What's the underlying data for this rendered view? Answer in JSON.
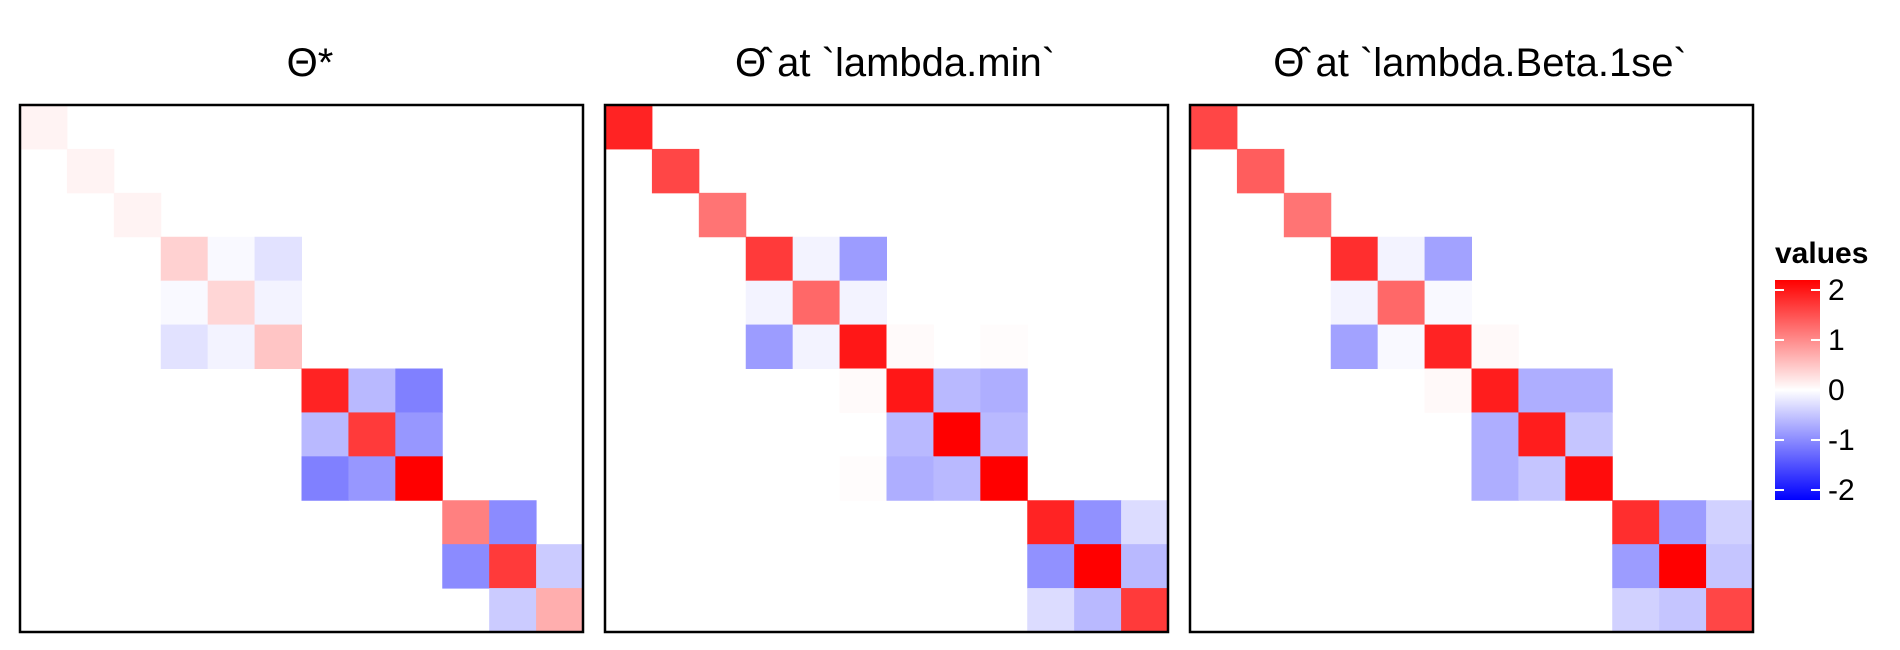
{
  "chart_data": {
    "type": "heatmap",
    "n": 12,
    "color_scale": {
      "low": "#0000ff",
      "mid": "#ffffff",
      "high": "#ff0000",
      "range": [
        -2.2,
        2.2
      ]
    },
    "legend": {
      "title": "values",
      "ticks": [
        2,
        1,
        0,
        -1,
        -2
      ],
      "tick_labels": [
        "2",
        "1",
        "0",
        "-1",
        "-2"
      ],
      "placement": "right"
    },
    "panels": [
      {
        "title": "Θ*",
        "cells": [
          [
            0,
            0,
            0.1
          ],
          [
            1,
            1,
            0.1
          ],
          [
            2,
            2,
            0.1
          ],
          [
            3,
            3,
            0.4
          ],
          [
            3,
            4,
            -0.05
          ],
          [
            3,
            5,
            -0.25
          ],
          [
            4,
            3,
            -0.05
          ],
          [
            4,
            4,
            0.35
          ],
          [
            4,
            5,
            -0.1
          ],
          [
            5,
            3,
            -0.25
          ],
          [
            5,
            4,
            -0.1
          ],
          [
            5,
            5,
            0.5
          ],
          [
            6,
            6,
            1.9
          ],
          [
            6,
            7,
            -0.6
          ],
          [
            6,
            8,
            -1.1
          ],
          [
            7,
            6,
            -0.6
          ],
          [
            7,
            7,
            1.7
          ],
          [
            7,
            8,
            -0.9
          ],
          [
            8,
            6,
            -1.1
          ],
          [
            8,
            7,
            -0.9
          ],
          [
            8,
            8,
            2.2
          ],
          [
            9,
            9,
            1.1
          ],
          [
            9,
            10,
            -1.0
          ],
          [
            10,
            9,
            -1.0
          ],
          [
            10,
            10,
            1.7
          ],
          [
            10,
            11,
            -0.45
          ],
          [
            11,
            10,
            -0.45
          ],
          [
            11,
            11,
            0.7
          ]
        ]
      },
      {
        "title": "Θ̂ at `lambda.min`",
        "cells": [
          [
            0,
            0,
            1.9
          ],
          [
            1,
            1,
            1.6
          ],
          [
            2,
            2,
            1.2
          ],
          [
            3,
            3,
            1.7
          ],
          [
            3,
            4,
            -0.1
          ],
          [
            3,
            5,
            -0.85
          ],
          [
            4,
            3,
            -0.1
          ],
          [
            4,
            4,
            1.3
          ],
          [
            4,
            5,
            -0.1
          ],
          [
            5,
            3,
            -0.85
          ],
          [
            5,
            4,
            -0.1
          ],
          [
            5,
            5,
            2.0
          ],
          [
            5,
            6,
            0.04
          ],
          [
            5,
            8,
            0.03
          ],
          [
            6,
            5,
            0.04
          ],
          [
            6,
            6,
            2.0
          ],
          [
            6,
            7,
            -0.6
          ],
          [
            6,
            8,
            -0.7
          ],
          [
            7,
            6,
            -0.6
          ],
          [
            7,
            7,
            2.2
          ],
          [
            7,
            8,
            -0.6
          ],
          [
            8,
            5,
            0.03
          ],
          [
            8,
            6,
            -0.7
          ],
          [
            8,
            7,
            -0.6
          ],
          [
            8,
            8,
            2.2
          ],
          [
            9,
            9,
            1.9
          ],
          [
            9,
            10,
            -0.95
          ],
          [
            9,
            11,
            -0.3
          ],
          [
            10,
            9,
            -0.95
          ],
          [
            10,
            10,
            2.2
          ],
          [
            10,
            11,
            -0.6
          ],
          [
            11,
            9,
            -0.3
          ],
          [
            11,
            10,
            -0.6
          ],
          [
            11,
            11,
            1.7
          ]
        ]
      },
      {
        "title": "Θ̂ at `lambda.Beta.1se`",
        "cells": [
          [
            0,
            0,
            1.6
          ],
          [
            1,
            1,
            1.4
          ],
          [
            2,
            2,
            1.2
          ],
          [
            3,
            3,
            1.8
          ],
          [
            3,
            4,
            -0.1
          ],
          [
            3,
            5,
            -0.8
          ],
          [
            4,
            3,
            -0.1
          ],
          [
            4,
            4,
            1.3
          ],
          [
            4,
            5,
            -0.05
          ],
          [
            5,
            3,
            -0.8
          ],
          [
            5,
            4,
            -0.05
          ],
          [
            5,
            5,
            1.9
          ],
          [
            5,
            6,
            0.05
          ],
          [
            6,
            5,
            0.05
          ],
          [
            6,
            6,
            1.95
          ],
          [
            6,
            7,
            -0.7
          ],
          [
            6,
            8,
            -0.7
          ],
          [
            7,
            6,
            -0.7
          ],
          [
            7,
            7,
            1.95
          ],
          [
            7,
            8,
            -0.5
          ],
          [
            8,
            6,
            -0.7
          ],
          [
            8,
            7,
            -0.5
          ],
          [
            8,
            8,
            2.1
          ],
          [
            9,
            9,
            1.8
          ],
          [
            9,
            10,
            -0.85
          ],
          [
            9,
            11,
            -0.4
          ],
          [
            10,
            9,
            -0.85
          ],
          [
            10,
            10,
            2.2
          ],
          [
            10,
            11,
            -0.5
          ],
          [
            11,
            9,
            -0.4
          ],
          [
            11,
            10,
            -0.5
          ],
          [
            11,
            11,
            1.6
          ]
        ]
      }
    ]
  }
}
